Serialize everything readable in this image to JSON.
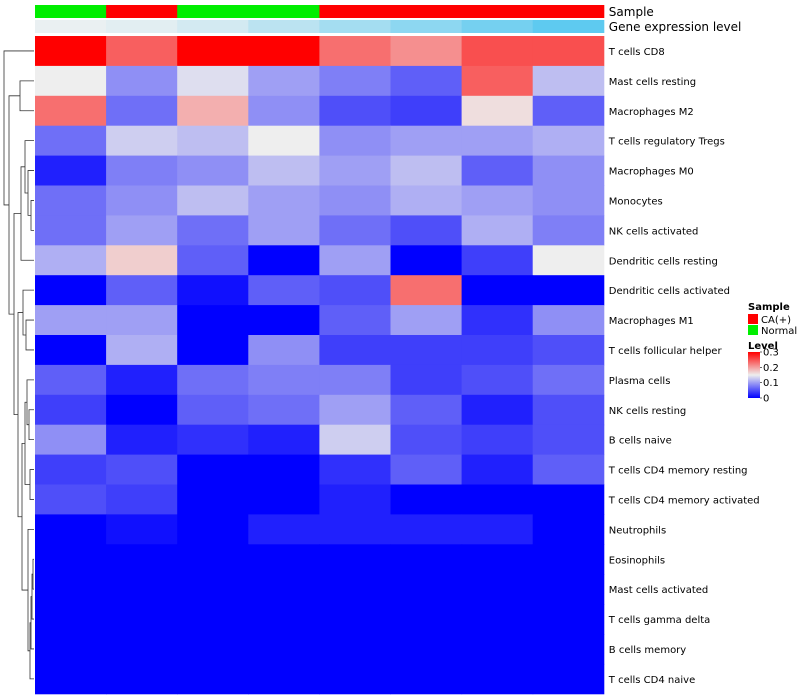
{
  "chart_data": {
    "type": "heatmap",
    "annotation_rows": [
      {
        "label": "Sample",
        "values": [
          "Normal",
          "CA(+)",
          "Normal",
          "Normal",
          "CA(+)",
          "CA(+)",
          "CA(+)",
          "CA(+)"
        ]
      },
      {
        "label": "Gene expression level",
        "values": [
          0.05,
          0.1,
          0.2,
          0.35,
          0.5,
          0.65,
          0.8,
          0.95
        ]
      }
    ],
    "rows": [
      "T cells CD8",
      "Mast cells resting",
      "Macrophages M2",
      "T cells regulatory  Tregs",
      "Macrophages M0",
      "Monocytes",
      "NK cells activated",
      "Dendritic cells resting",
      "Dendritic cells activated",
      "Macrophages M1",
      "T cells follicular helper",
      "Plasma cells",
      "NK cells resting",
      "B cells naive",
      "T cells CD4 memory resting",
      "T cells CD4 memory activated",
      "Neutrophils",
      "Eosinophils",
      "Mast cells activated",
      "T cells gamma delta",
      "B cells memory",
      "T cells CD4 naive"
    ],
    "values": [
      [
        0.3,
        0.24,
        0.3,
        0.3,
        0.23,
        0.21,
        0.25,
        0.25
      ],
      [
        0.15,
        0.09,
        0.14,
        0.1,
        0.08,
        0.06,
        0.24,
        0.12
      ],
      [
        0.23,
        0.07,
        0.19,
        0.09,
        0.05,
        0.04,
        0.16,
        0.06
      ],
      [
        0.07,
        0.13,
        0.12,
        0.15,
        0.09,
        0.1,
        0.1,
        0.11
      ],
      [
        0.02,
        0.08,
        0.09,
        0.12,
        0.1,
        0.12,
        0.06,
        0.09
      ],
      [
        0.07,
        0.09,
        0.12,
        0.1,
        0.09,
        0.11,
        0.1,
        0.09
      ],
      [
        0.07,
        0.1,
        0.07,
        0.1,
        0.07,
        0.05,
        0.11,
        0.08
      ],
      [
        0.11,
        0.17,
        0.06,
        0.0,
        0.1,
        0.0,
        0.04,
        0.15
      ],
      [
        0.0,
        0.06,
        0.01,
        0.06,
        0.05,
        0.23,
        0.0,
        0.0
      ],
      [
        0.1,
        0.1,
        0.0,
        0.0,
        0.06,
        0.1,
        0.03,
        0.09
      ],
      [
        0.0,
        0.11,
        0.0,
        0.09,
        0.04,
        0.04,
        0.04,
        0.05
      ],
      [
        0.06,
        0.02,
        0.07,
        0.08,
        0.08,
        0.04,
        0.05,
        0.07
      ],
      [
        0.04,
        0.0,
        0.06,
        0.07,
        0.1,
        0.06,
        0.02,
        0.05
      ],
      [
        0.09,
        0.02,
        0.03,
        0.02,
        0.13,
        0.05,
        0.04,
        0.05
      ],
      [
        0.04,
        0.05,
        0.0,
        0.0,
        0.03,
        0.06,
        0.02,
        0.06
      ],
      [
        0.05,
        0.04,
        0.0,
        0.0,
        0.02,
        0.0,
        0.0,
        0.0
      ],
      [
        0.0,
        0.01,
        0.0,
        0.02,
        0.02,
        0.02,
        0.02,
        0.0
      ],
      [
        0.0,
        0.0,
        0.0,
        0.0,
        0.0,
        0.0,
        0.0,
        0.0
      ],
      [
        0.0,
        0.0,
        0.0,
        0.0,
        0.0,
        0.0,
        0.0,
        0.0
      ],
      [
        0.0,
        0.0,
        0.0,
        0.0,
        0.0,
        0.0,
        0.0,
        0.0
      ],
      [
        0.0,
        0.0,
        0.0,
        0.0,
        0.0,
        0.0,
        0.0,
        0.0
      ],
      [
        0.0,
        0.0,
        0.0,
        0.0,
        0.0,
        0.0,
        0.0,
        0.0
      ]
    ],
    "color_scale": {
      "min": 0,
      "max": 0.3,
      "stops": [
        {
          "value": 0,
          "color": "#0000ff"
        },
        {
          "value": 0.15,
          "color": "#eeeeee"
        },
        {
          "value": 0.3,
          "color": "#ff0000"
        }
      ]
    },
    "sample_colors": {
      "CA(+)": "#ff0000",
      "Normal": "#00ee00"
    },
    "expression_colors": {
      "low": "#f2f2f2",
      "high": "#56c8f0"
    },
    "legend": {
      "sample_title": "Sample",
      "sample_items": [
        "CA(+)",
        "Normal"
      ],
      "level_title": "Level",
      "level_ticks": [
        "0.3",
        "0.2",
        "0.1",
        "0"
      ],
      "level_tick_values": [
        0.3,
        0.2,
        0.1,
        0
      ],
      "position": "right"
    }
  }
}
